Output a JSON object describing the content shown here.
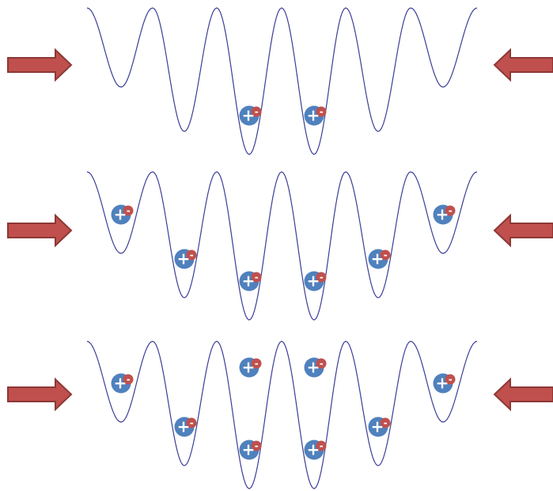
{
  "colors": {
    "potential": "#3b3e96",
    "arrow_fill": "#c0504d",
    "arrow_stroke": "#8c3836",
    "nucleus": "#4f81bd",
    "electron": "#c0504d",
    "charge_text": "#ffffff"
  },
  "charges": {
    "nucleus": "+",
    "electron": "-"
  },
  "icons": {
    "left_arrow": "arrow-right-icon",
    "right_arrow": "arrow-left-icon"
  },
  "rows": [
    {
      "name": "row-1",
      "occupancy": [
        [],
        [],
        [],
        [
          1
        ],
        [
          1
        ],
        [],
        []
      ]
    },
    {
      "name": "row-2",
      "occupancy": [
        [
          1
        ],
        [
          1
        ],
        [
          1
        ],
        [
          1
        ],
        [
          1
        ],
        [
          1
        ],
        []
      ]
    },
    {
      "name": "row-3",
      "occupancy": [
        [
          1
        ],
        [
          1
        ],
        [
          1,
          2
        ],
        [
          1,
          2
        ],
        [
          1
        ],
        [
          1
        ],
        []
      ]
    }
  ]
}
